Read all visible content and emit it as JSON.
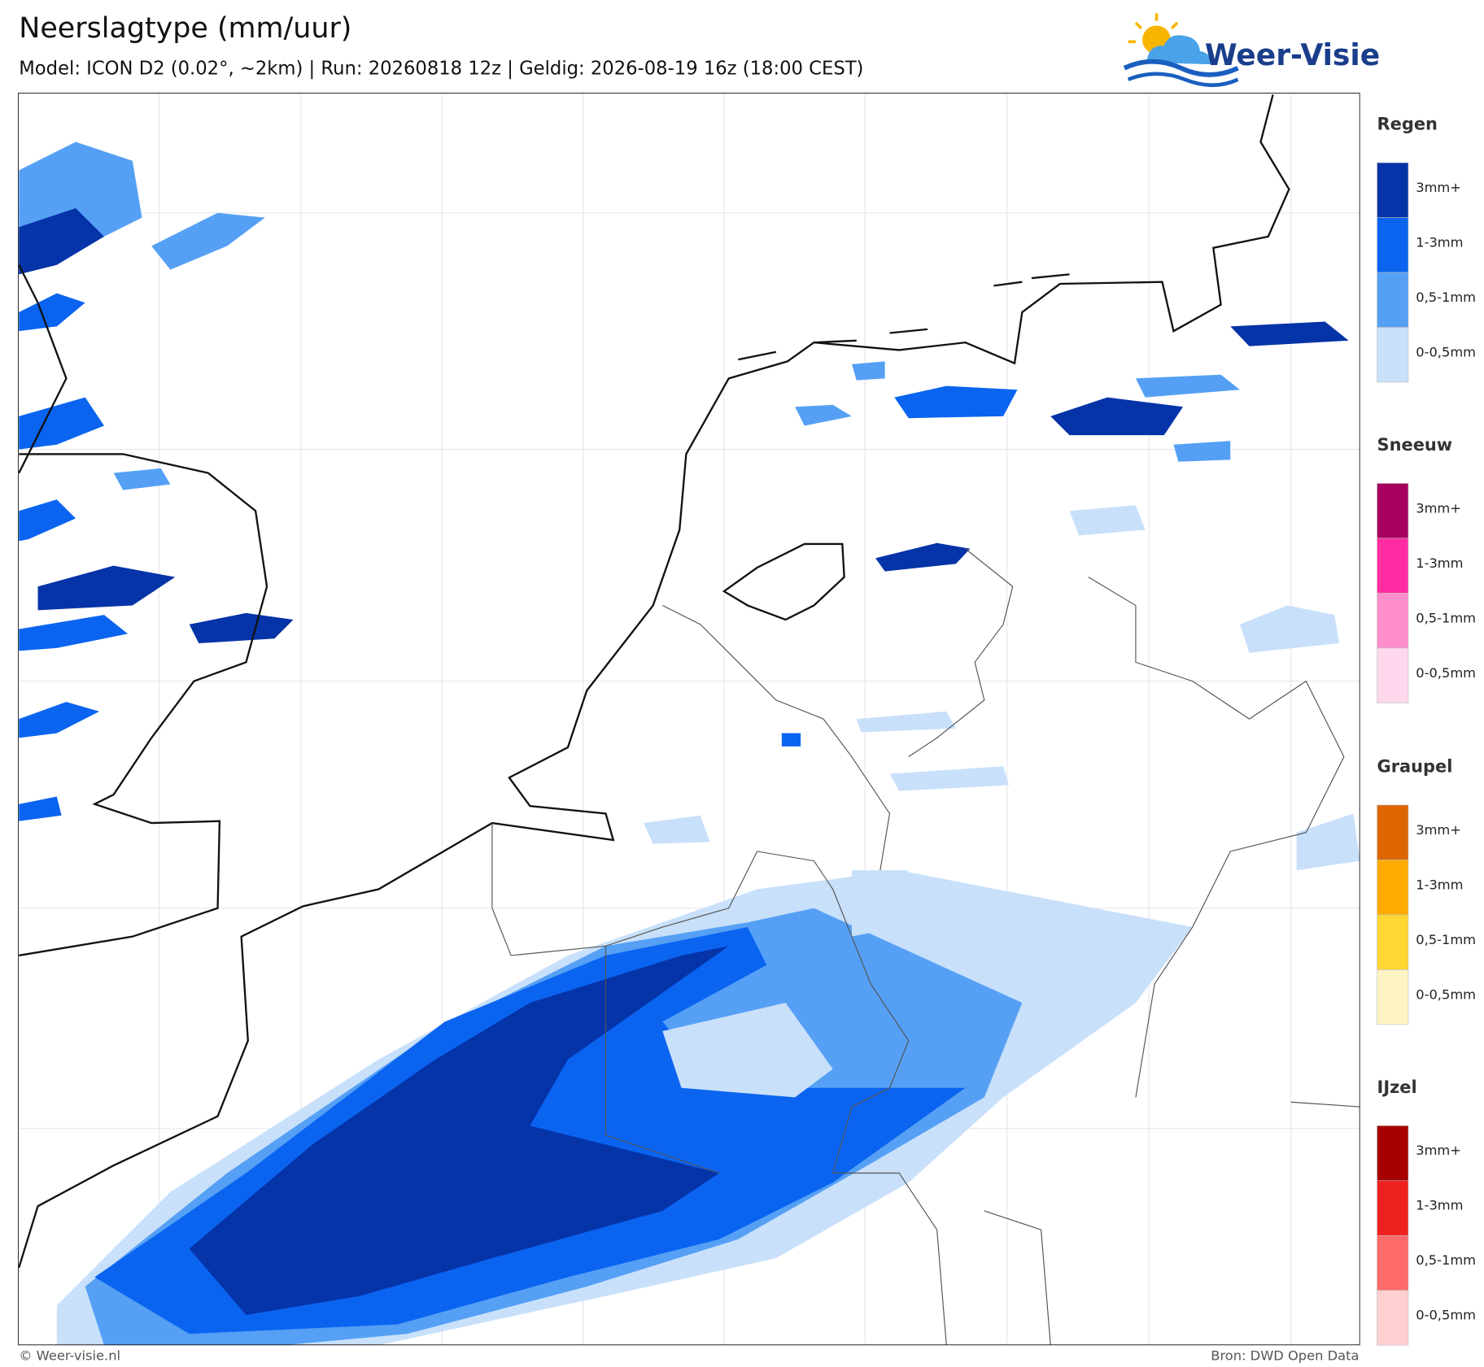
{
  "header": {
    "title": "Neerslagtype (mm/uur)",
    "subtitle": "Model: ICON D2 (0.02°, ~2km)  |  Run: 20260818 12z  |  Geldig: 2026-08-19 16z (18:00 CEST)",
    "logo": "Weer-Visie"
  },
  "legend": [
    {
      "title": "Regen",
      "items": [
        {
          "label": "3mm+",
          "color": "#0533a8"
        },
        {
          "label": "1-3mm",
          "color": "#0a64f0"
        },
        {
          "label": "0,5-1mm",
          "color": "#55a0f5"
        },
        {
          "label": "0-0,5mm",
          "color": "#c8e0fa"
        }
      ]
    },
    {
      "title": "Sneeuw",
      "items": [
        {
          "label": "3mm+",
          "color": "#a8005f"
        },
        {
          "label": "1-3mm",
          "color": "#ff2ca2"
        },
        {
          "label": "0,5-1mm",
          "color": "#ff8ecd"
        },
        {
          "label": "0-0,5mm",
          "color": "#ffd8ee"
        }
      ]
    },
    {
      "title": "Graupel",
      "items": [
        {
          "label": "3mm+",
          "color": "#de6600"
        },
        {
          "label": "1-3mm",
          "color": "#ffab00"
        },
        {
          "label": "0,5-1mm",
          "color": "#ffd633"
        },
        {
          "label": "0-0,5mm",
          "color": "#fff3c4"
        }
      ]
    },
    {
      "title": "IJzel",
      "items": [
        {
          "label": "3mm+",
          "color": "#a80000"
        },
        {
          "label": "1-3mm",
          "color": "#ee2020"
        },
        {
          "label": "0,5-1mm",
          "color": "#ff6a6a"
        },
        {
          "label": "0-0,5mm",
          "color": "#ffd0d0"
        }
      ]
    }
  ],
  "footer": {
    "copyright": "© Weer-visie.nl",
    "source": "Bron: DWD Open Data"
  }
}
